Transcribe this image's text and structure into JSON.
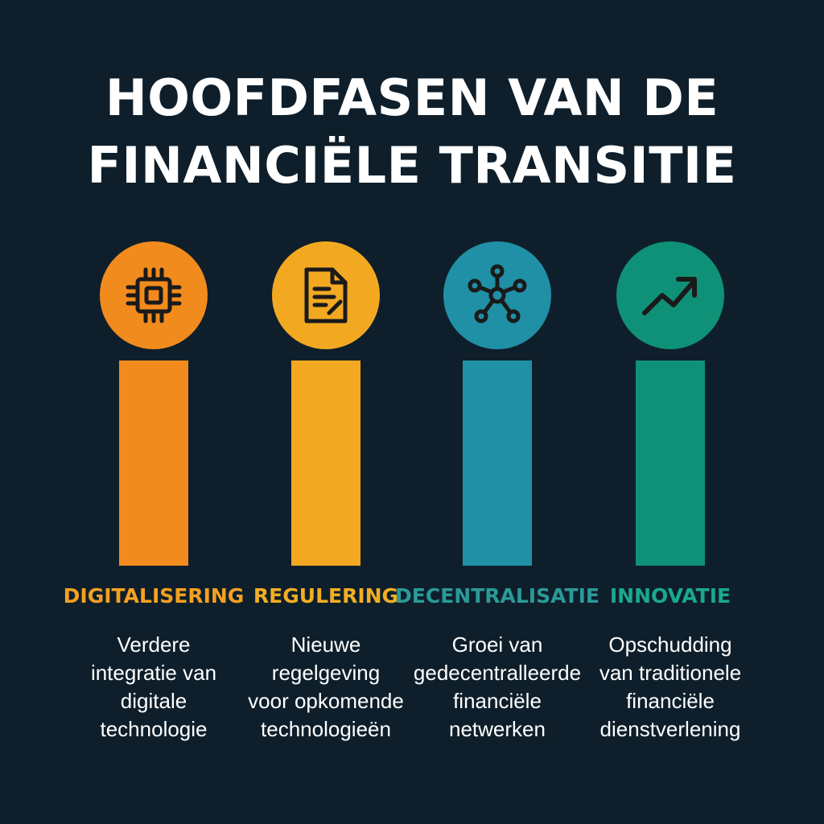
{
  "title": {
    "line1": "HOOFDFASEN VAN DE",
    "line2": "FINANCIËLE TRANSITIE"
  },
  "phases": [
    {
      "label": "DIGITALISERING",
      "icon": "chip-icon",
      "color": "#f28b1e",
      "label_color": "#f5a020",
      "desc": [
        "Verdere",
        "integratie van",
        "digitale",
        "technologie"
      ]
    },
    {
      "label": "REGULERING",
      "icon": "document-icon",
      "color": "#f2a921",
      "label_color": "#f2ad24",
      "desc": [
        "Nieuwe",
        "regelgeving",
        "voor opkomende",
        "technologieën"
      ]
    },
    {
      "label": "DECENTRALISATIE",
      "icon": "network-icon",
      "color": "#2090a6",
      "label_color": "#2a9a98",
      "desc": [
        "Groei van",
        "gedecentralleerde",
        "financiële",
        "netwerken"
      ]
    },
    {
      "label": "INNOVATIE",
      "icon": "trend-up-icon",
      "color": "#0f9177",
      "label_color": "#1aa88e",
      "desc": [
        "Opschudding",
        "van traditionele",
        "financiële",
        "dienstverlening"
      ]
    }
  ]
}
